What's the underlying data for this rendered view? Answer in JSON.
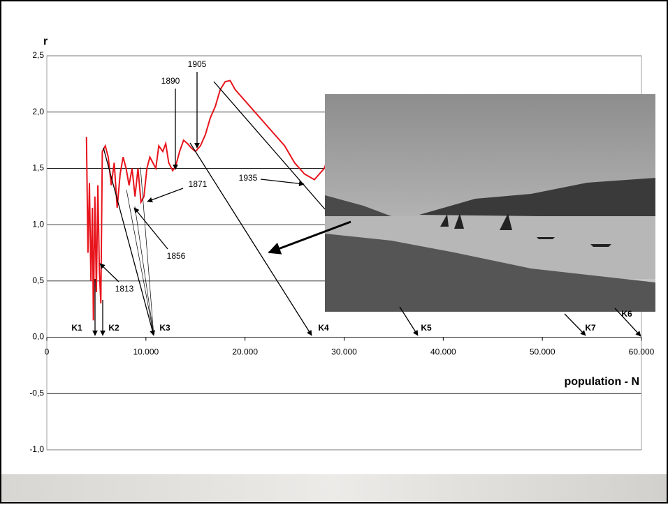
{
  "chart_data": {
    "type": "line",
    "y_label": "r",
    "x_label": "population - N",
    "xlim": [
      0,
      60000
    ],
    "ylim": [
      -1.0,
      2.5
    ],
    "xticks": [
      0,
      {
        "value": 10000,
        "label": "10.000"
      },
      {
        "value": 20000,
        "label": "20.000"
      },
      {
        "value": 30000,
        "label": "30.000"
      },
      {
        "value": 40000,
        "label": "40.000"
      },
      {
        "value": 50000,
        "label": "50.000"
      },
      {
        "value": 60000,
        "label": "60.000"
      }
    ],
    "yticks": [
      {
        "value": -1.0,
        "label": "-1,0"
      },
      {
        "value": -0.5,
        "label": "-0,5"
      },
      {
        "value": 0.0,
        "label": "0,0"
      },
      {
        "value": 0.5,
        "label": "0,5"
      },
      {
        "value": 1.0,
        "label": "1,0"
      },
      {
        "value": 1.5,
        "label": "1,5"
      },
      {
        "value": 2.0,
        "label": "2,0"
      },
      {
        "value": 2.5,
        "label": "2,5"
      }
    ],
    "grid": true,
    "series": [
      {
        "color": "#e8141c",
        "x": [
          4000,
          4150,
          4300,
          4450,
          4600,
          4700,
          4850,
          5000,
          5150,
          5300,
          5450,
          5600,
          5900,
          6200,
          6500,
          6800,
          7100,
          7400,
          7700,
          8000,
          8300,
          8600,
          8900,
          9200,
          9500,
          9800,
          10100,
          10400,
          10700,
          11000,
          11300,
          11700,
          12000,
          12300,
          12700,
          13000,
          13400,
          13800,
          14200,
          14600,
          15000,
          15500,
          16000,
          16500,
          17000,
          17500,
          18000,
          18500,
          19000,
          19500,
          20000,
          21000,
          22000,
          23000,
          24000,
          25000,
          26000,
          27000,
          27500,
          28000,
          28400
        ],
        "values": [
          1.78,
          0.75,
          1.37,
          0.5,
          1.15,
          0.15,
          1.25,
          0.4,
          1.35,
          0.6,
          0.3,
          1.65,
          1.7,
          1.6,
          1.35,
          1.55,
          1.15,
          1.45,
          1.6,
          1.5,
          1.35,
          1.5,
          1.25,
          1.5,
          1.2,
          1.25,
          1.5,
          1.6,
          1.55,
          1.5,
          1.7,
          1.65,
          1.72,
          1.55,
          1.48,
          1.52,
          1.65,
          1.75,
          1.72,
          1.68,
          1.65,
          1.7,
          1.8,
          1.95,
          2.05,
          2.2,
          2.27,
          2.28,
          2.2,
          2.15,
          2.1,
          2.0,
          1.9,
          1.8,
          1.7,
          1.55,
          1.45,
          1.4,
          1.45,
          1.5,
          1.6
        ]
      }
    ],
    "annotations": [
      "1905",
      "1890",
      "1871",
      "1856",
      "1935",
      "1813"
    ],
    "k_labels": [
      "K1",
      "K2",
      "K3",
      "K4",
      "K5",
      "K7",
      "K6"
    ]
  }
}
